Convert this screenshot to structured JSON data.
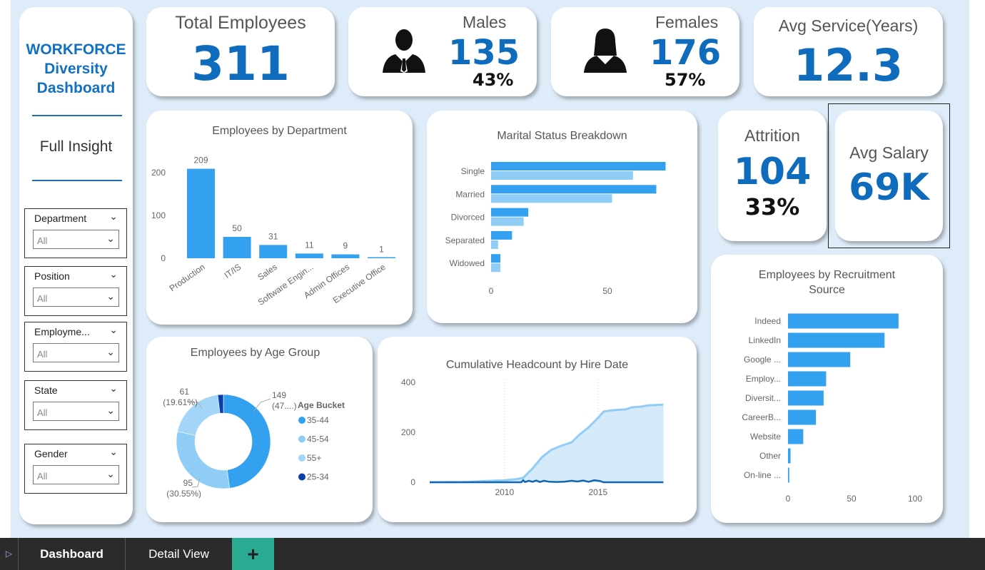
{
  "sidebar": {
    "title_lines": [
      "WORKFORCE",
      "Diversity",
      "Dashboard"
    ],
    "subtitle": "Full Insight",
    "slicers": [
      {
        "label": "Department",
        "value": "All"
      },
      {
        "label": "Position",
        "value": "All"
      },
      {
        "label": "Employme...",
        "value": "All"
      },
      {
        "label": "State",
        "value": "All"
      },
      {
        "label": "Gender",
        "value": "All"
      }
    ]
  },
  "kpis": {
    "total": {
      "title": "Total Employees",
      "value": "311"
    },
    "males": {
      "title": "Males",
      "value": "135",
      "pct": "43%",
      "icon": "male-person-icon"
    },
    "females": {
      "title": "Females",
      "value": "176",
      "pct": "57%",
      "icon": "female-person-icon"
    },
    "service": {
      "title": "Avg Service(Years)",
      "value": "12.3"
    },
    "attrition": {
      "title": "Attrition",
      "value": "104",
      "pct": "33%"
    },
    "salary": {
      "title": "Avg Salary",
      "value": "69K"
    }
  },
  "colors": {
    "accent": "#0f6cbd",
    "bar": "#33a1f0",
    "bar_light": "#8fcdf7",
    "dark": "#0a3fa8",
    "line_dark": "#1167b1"
  },
  "chart_data": [
    {
      "type": "bar",
      "title": "Employees by Department",
      "categories": [
        "Production",
        "IT/IS",
        "Sales",
        "Software Engin...",
        "Admin Offices",
        "Executive Office"
      ],
      "values": [
        209,
        50,
        31,
        11,
        9,
        1
      ],
      "yticks": [
        "0",
        "100",
        "200"
      ],
      "ylim": [
        0,
        230
      ]
    },
    {
      "type": "bar",
      "orientation": "horizontal",
      "title": "Marital Status Breakdown",
      "categories": [
        "Single",
        "Married",
        "Divorced",
        "Separated",
        "Widowed"
      ],
      "series": [
        {
          "values": [
            75,
            71,
            16,
            9,
            4
          ]
        },
        {
          "values": [
            61,
            52,
            14,
            3,
            4
          ]
        }
      ],
      "xticks": [
        "0",
        "50"
      ]
    },
    {
      "type": "pie",
      "donut": true,
      "title": "Employees by Age Group",
      "legend_title": "Age Bucket",
      "legend_position": "right",
      "categories": [
        "35-44",
        "45-54",
        "55+",
        "25-34"
      ],
      "values": [
        149,
        95,
        61,
        6
      ],
      "labels": [
        {
          "value": "149",
          "pct": "(47....)"
        },
        {
          "value": "95",
          "pct": "(30.55%)"
        },
        {
          "value": "61",
          "pct": "(19.61%)"
        }
      ],
      "colors": [
        "#33a1f0",
        "#8fcdf7",
        "#a3d5f8",
        "#0a3fa8"
      ]
    },
    {
      "type": "area",
      "title": "Cumulative Headcount by Hire Date",
      "xticks": [
        "2010",
        "2015"
      ],
      "yticks": [
        "0",
        "200",
        "400"
      ],
      "ylim": [
        0,
        400
      ],
      "xlim": [
        2006,
        2018.5
      ],
      "series": [
        {
          "points": [
            [
              2006,
              0
            ],
            [
              2008,
              1
            ],
            [
              2009,
              5
            ],
            [
              2010,
              8
            ],
            [
              2010.6,
              12
            ],
            [
              2011,
              18
            ],
            [
              2011.5,
              55
            ],
            [
              2012,
              100
            ],
            [
              2012.5,
              130
            ],
            [
              2013,
              145
            ],
            [
              2013.6,
              160
            ],
            [
              2014,
              190
            ],
            [
              2014.5,
              220
            ],
            [
              2015,
              258
            ],
            [
              2015.3,
              283
            ],
            [
              2015.7,
              288
            ],
            [
              2016.5,
              292
            ],
            [
              2016.8,
              300
            ],
            [
              2017.3,
              303
            ],
            [
              2017.7,
              308
            ],
            [
              2018.5,
              311
            ]
          ]
        },
        {
          "points": [
            [
              2006,
              0
            ],
            [
              2010.9,
              0
            ],
            [
              2011,
              8
            ],
            [
              2011.1,
              1
            ],
            [
              2011.3,
              6
            ],
            [
              2011.5,
              2
            ],
            [
              2011.7,
              7
            ],
            [
              2011.9,
              1
            ],
            [
              2012.1,
              6
            ],
            [
              2012.4,
              2
            ],
            [
              2012.8,
              1
            ],
            [
              2013.2,
              2
            ],
            [
              2013.6,
              6
            ],
            [
              2013.9,
              3
            ],
            [
              2014.2,
              7
            ],
            [
              2014.5,
              2
            ],
            [
              2014.8,
              8
            ],
            [
              2015.1,
              5
            ],
            [
              2015.3,
              0
            ],
            [
              2018.5,
              0
            ]
          ]
        }
      ]
    },
    {
      "type": "bar",
      "orientation": "horizontal",
      "title": "Employees by Recruitment Source",
      "categories": [
        "Indeed",
        "LinkedIn",
        "Google ...",
        "Employ...",
        "Diversit...",
        "CareerB...",
        "Website",
        "Other",
        "On-line ..."
      ],
      "values": [
        87,
        76,
        49,
        30,
        28,
        22,
        12,
        2,
        1
      ],
      "xticks": [
        "0",
        "50",
        "100"
      ]
    }
  ],
  "tabs": {
    "items": [
      "Dashboard",
      "Detail View"
    ],
    "add": "+",
    "active": "Dashboard"
  }
}
